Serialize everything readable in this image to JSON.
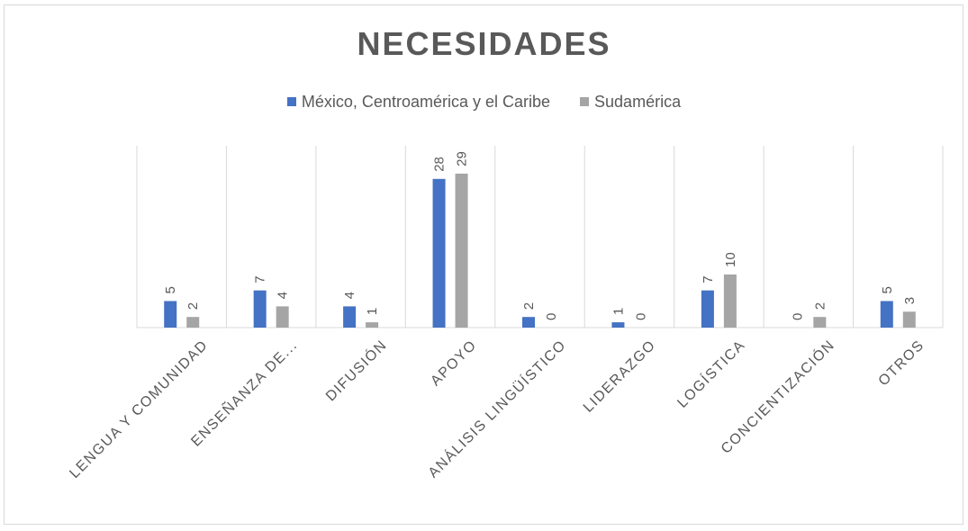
{
  "chart_data": {
    "type": "bar",
    "title": "NECESIDADES",
    "categories": [
      "LENGUA Y COMUNIDAD",
      "ENSEÑANZA DE...",
      "DIFUSIÓN",
      "APOYO",
      "ANÁLISIS LINGÜÍSTICO",
      "LIDERAZGO",
      "LOGÍSTICA",
      "CONCIENTIZACIÓN",
      "OTROS"
    ],
    "series": [
      {
        "name": "México, Centroamérica y el Caribe",
        "color": "#4472c4",
        "values": [
          5,
          7,
          4,
          28,
          2,
          1,
          7,
          0,
          5
        ]
      },
      {
        "name": "Sudamérica",
        "color": "#a5a5a5",
        "values": [
          2,
          4,
          1,
          29,
          0,
          0,
          10,
          2,
          3
        ]
      }
    ],
    "ylim": [
      0,
      34
    ],
    "grid": "vertical category separators",
    "legend_position": "top",
    "data_labels": true
  }
}
